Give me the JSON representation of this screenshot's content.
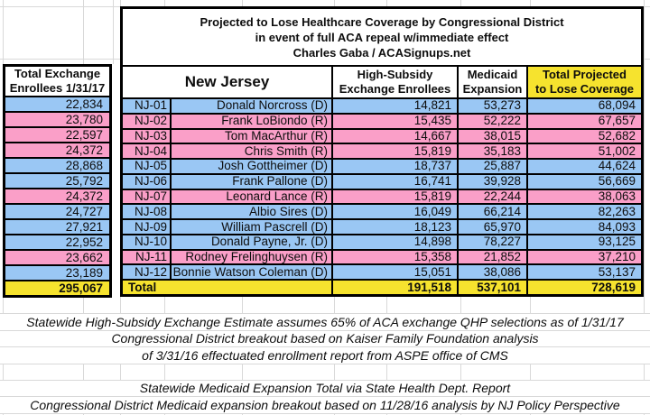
{
  "title": {
    "lines": [
      "Projected to Lose Healthcare Coverage by Congressional District",
      "in event of full ACA repeal w/immediate effect",
      "Charles Gaba / ACASignups.net"
    ]
  },
  "left_column": {
    "header_lines": [
      "Total Exchange",
      "Enrollees 1/31/17"
    ],
    "total": "295,067"
  },
  "table": {
    "state_label": "New Jersey",
    "headers": {
      "high_subsidy": [
        "High-Subsidy",
        "Exchange Enrollees"
      ],
      "medicaid": [
        "Medicaid",
        "Expansion"
      ],
      "total": [
        "Total Projected",
        "to Lose Coverage"
      ]
    },
    "rows": [
      {
        "district": "NJ-01",
        "name": "Donald Norcross (D)",
        "party": "D",
        "exchange_enrollees": "22,834",
        "high_subsidy": "14,821",
        "medicaid": "53,273",
        "total": "68,094"
      },
      {
        "district": "NJ-02",
        "name": "Frank LoBiondo (R)",
        "party": "R",
        "exchange_enrollees": "23,780",
        "high_subsidy": "15,435",
        "medicaid": "52,222",
        "total": "67,657"
      },
      {
        "district": "NJ-03",
        "name": "Tom MacArthur (R)",
        "party": "R",
        "exchange_enrollees": "22,597",
        "high_subsidy": "14,667",
        "medicaid": "38,015",
        "total": "52,682"
      },
      {
        "district": "NJ-04",
        "name": "Chris Smith (R)",
        "party": "R",
        "exchange_enrollees": "24,372",
        "high_subsidy": "15,819",
        "medicaid": "35,183",
        "total": "51,002"
      },
      {
        "district": "NJ-05",
        "name": "Josh Gottheimer (D)",
        "party": "D",
        "exchange_enrollees": "28,868",
        "high_subsidy": "18,737",
        "medicaid": "25,887",
        "total": "44,624"
      },
      {
        "district": "NJ-06",
        "name": "Frank Pallone (D)",
        "party": "D",
        "exchange_enrollees": "25,792",
        "high_subsidy": "16,741",
        "medicaid": "39,928",
        "total": "56,669"
      },
      {
        "district": "NJ-07",
        "name": "Leonard Lance (R)",
        "party": "R",
        "exchange_enrollees": "24,372",
        "high_subsidy": "15,819",
        "medicaid": "22,244",
        "total": "38,063"
      },
      {
        "district": "NJ-08",
        "name": "Albio Sires (D)",
        "party": "D",
        "exchange_enrollees": "24,727",
        "high_subsidy": "16,049",
        "medicaid": "66,214",
        "total": "82,263"
      },
      {
        "district": "NJ-09",
        "name": "William Pascrell (D)",
        "party": "D",
        "exchange_enrollees": "27,921",
        "high_subsidy": "18,123",
        "medicaid": "65,970",
        "total": "84,093"
      },
      {
        "district": "NJ-10",
        "name": "Donald Payne, Jr. (D)",
        "party": "D",
        "exchange_enrollees": "22,952",
        "high_subsidy": "14,898",
        "medicaid": "78,227",
        "total": "93,125"
      },
      {
        "district": "NJ-11",
        "name": "Rodney Frelinghuysen (R)",
        "party": "R",
        "exchange_enrollees": "23,662",
        "high_subsidy": "15,358",
        "medicaid": "21,852",
        "total": "37,210"
      },
      {
        "district": "NJ-12",
        "name": "Bonnie Watson Coleman (D)",
        "party": "D",
        "exchange_enrollees": "23,189",
        "high_subsidy": "15,051",
        "medicaid": "38,086",
        "total": "53,137"
      }
    ],
    "total_row": {
      "label": "Total",
      "high_subsidy": "191,518",
      "medicaid": "537,101",
      "total": "728,619"
    }
  },
  "footnotes": {
    "exchange": [
      "Statewide High-Subsidy Exchange Estimate assumes 65% of ACA exchange QHP selections as of 1/31/17",
      "Congressional District breakout based on Kaiser Family Foundation analysis",
      "of 3/31/16 effectuated enrollment report from ASPE office of CMS"
    ],
    "medicaid": [
      "Statewide Medicaid Expansion Total via State Health Dept. Report",
      "Congressional District Medicaid expansion breakout based on 11/28/16 analysis by NJ Policy Perspective"
    ]
  },
  "colors": {
    "democrat_row": "#9ac7f4",
    "republican_row": "#fa9fc8",
    "total_row": "#f6e32e",
    "grid_line": "#d9d9d9",
    "border": "#000000"
  }
}
